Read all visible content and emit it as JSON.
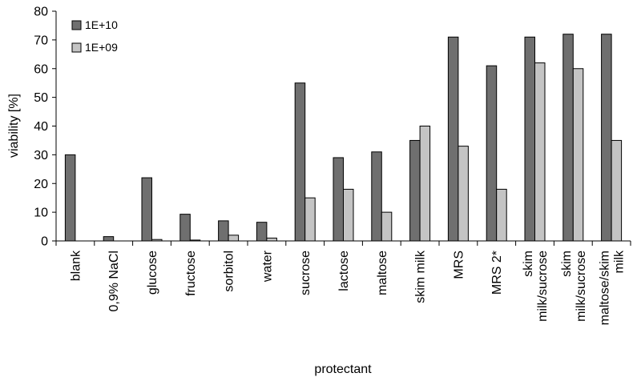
{
  "chart_data": {
    "type": "bar",
    "title": "",
    "xlabel": "protectant",
    "ylabel": "viability [%]",
    "ylim": [
      0,
      80
    ],
    "yticks": [
      0,
      10,
      20,
      30,
      40,
      50,
      60,
      70,
      80
    ],
    "grid": false,
    "legend_position": "top-left",
    "categories": [
      "blank",
      "0,9% NaCl",
      "glucose",
      "fructose",
      "sorbitol",
      "water",
      "sucrose",
      "lactose",
      "maltose",
      "skim milk",
      "MRS",
      "MRS 2*",
      "skim milk/sucrose",
      "skim milk/sucrose",
      "maltose/skim milk"
    ],
    "series": [
      {
        "name": "1E+10",
        "color": "#6f6f6f",
        "values": [
          30,
          1.5,
          22,
          9.3,
          7,
          6.5,
          55,
          29,
          31,
          35,
          71,
          61,
          71,
          72,
          72
        ]
      },
      {
        "name": "1E+09",
        "color": "#c4c4c4",
        "values": [
          0,
          0,
          0.5,
          0.3,
          2,
          1,
          15,
          18,
          10,
          40,
          33,
          18,
          62,
          60,
          35
        ]
      }
    ]
  }
}
